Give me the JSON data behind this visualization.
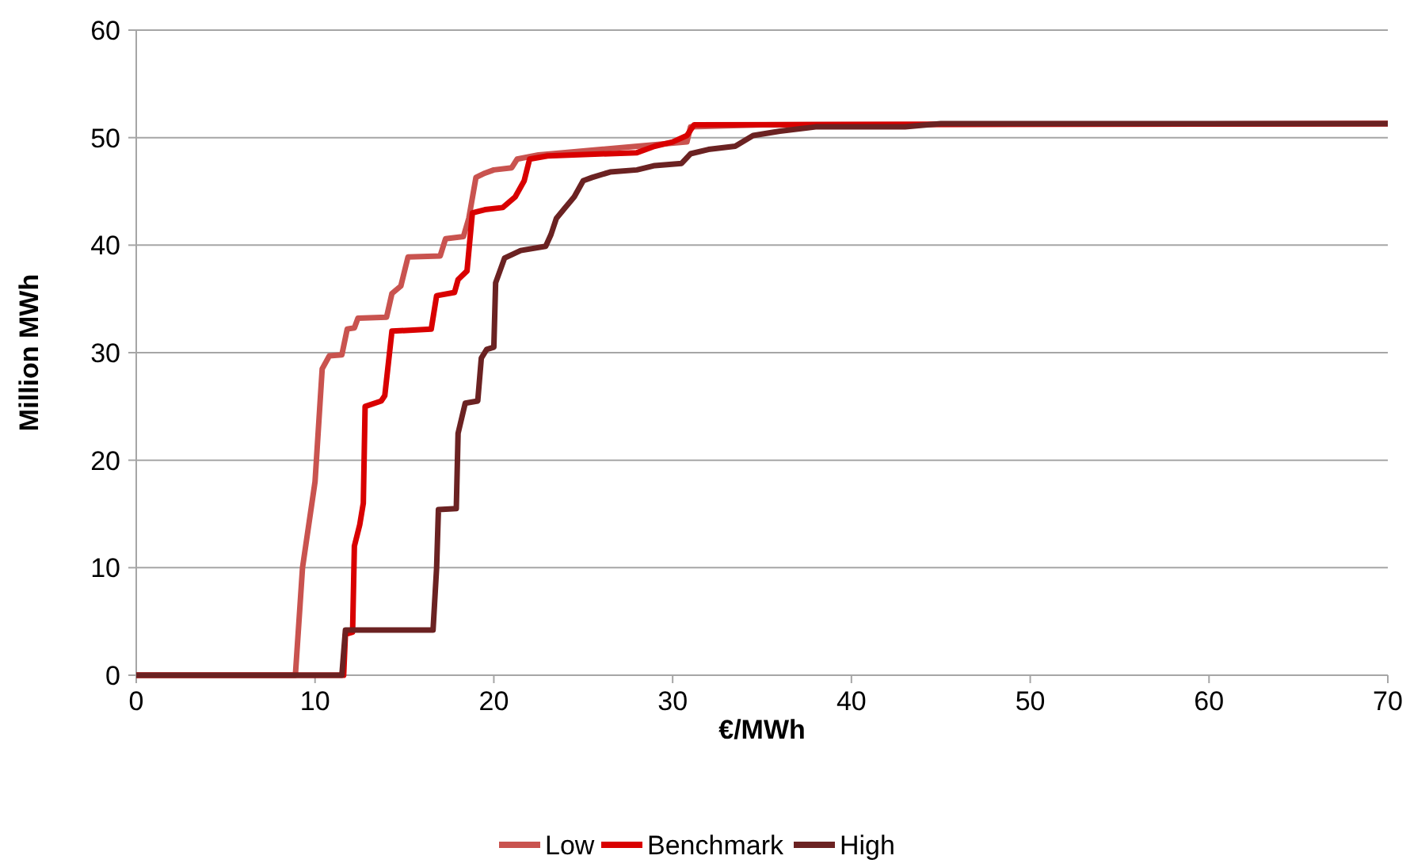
{
  "chart_data": {
    "type": "line",
    "xlabel": "€/MWh",
    "ylabel": "Million MWh",
    "xlim": [
      0,
      70
    ],
    "ylim": [
      0,
      60
    ],
    "xticks": [
      0,
      10,
      20,
      30,
      40,
      50,
      60,
      70
    ],
    "yticks": [
      0,
      10,
      20,
      30,
      40,
      50,
      60
    ],
    "grid": "y",
    "legend": "bottom",
    "marker": "none",
    "line_style": "solid",
    "series": [
      {
        "name": "Low",
        "color": "#c9534f",
        "x": [
          0,
          8.9,
          9.3,
          10,
          10.4,
          10.8,
          11.5,
          11.8,
          12.2,
          12.4,
          14,
          14.3,
          14.8,
          15.2,
          17,
          17.3,
          18.3,
          18.6,
          19,
          19.5,
          20,
          21,
          21.3,
          22.5,
          30.8,
          31,
          35,
          70
        ],
        "values": [
          0,
          0,
          10,
          18,
          28.5,
          29.7,
          29.8,
          32.2,
          32.3,
          33.2,
          33.3,
          35.5,
          36.2,
          38.9,
          39,
          40.6,
          40.8,
          42.5,
          46.3,
          46.7,
          47,
          47.2,
          48,
          48.4,
          49.6,
          51,
          51.2,
          51.3
        ]
      },
      {
        "name": "Benchmark",
        "color": "#d90000",
        "x": [
          0,
          11.6,
          11.7,
          12.1,
          12.2,
          12.5,
          12.7,
          12.8,
          13.7,
          13.9,
          14.3,
          16.5,
          16.8,
          17.8,
          18,
          18.5,
          18.8,
          19.5,
          20.5,
          21.2,
          21.7,
          22,
          23,
          28,
          29,
          30,
          30.8,
          31.2,
          70
        ],
        "values": [
          0,
          0,
          3.8,
          4,
          12,
          14,
          16,
          25,
          25.5,
          26,
          32,
          32.2,
          35.3,
          35.6,
          36.8,
          37.6,
          43,
          43.3,
          43.5,
          44.5,
          46,
          48,
          48.3,
          48.6,
          49.2,
          49.6,
          50.2,
          51.2,
          51.3
        ]
      },
      {
        "name": "High",
        "color": "#6b2222",
        "x": [
          0,
          11.5,
          11.7,
          16.6,
          16.8,
          16.9,
          17.9,
          18,
          18.4,
          19.1,
          19.3,
          19.6,
          20,
          20.1,
          20.6,
          21.5,
          22.9,
          23.2,
          23.5,
          24,
          24.5,
          25,
          25.5,
          26.5,
          28,
          29,
          30.5,
          31,
          32,
          33.5,
          34.5,
          36,
          38,
          43,
          45,
          70
        ],
        "values": [
          0,
          0,
          4.2,
          4.2,
          10,
          15.4,
          15.5,
          22.5,
          25.3,
          25.5,
          29.5,
          30.3,
          30.5,
          36.5,
          38.8,
          39.5,
          39.9,
          41,
          42.5,
          43.5,
          44.5,
          46,
          46.3,
          46.8,
          47,
          47.4,
          47.6,
          48.5,
          48.9,
          49.2,
          50.2,
          50.6,
          51,
          51,
          51.3,
          51.3
        ]
      }
    ]
  }
}
